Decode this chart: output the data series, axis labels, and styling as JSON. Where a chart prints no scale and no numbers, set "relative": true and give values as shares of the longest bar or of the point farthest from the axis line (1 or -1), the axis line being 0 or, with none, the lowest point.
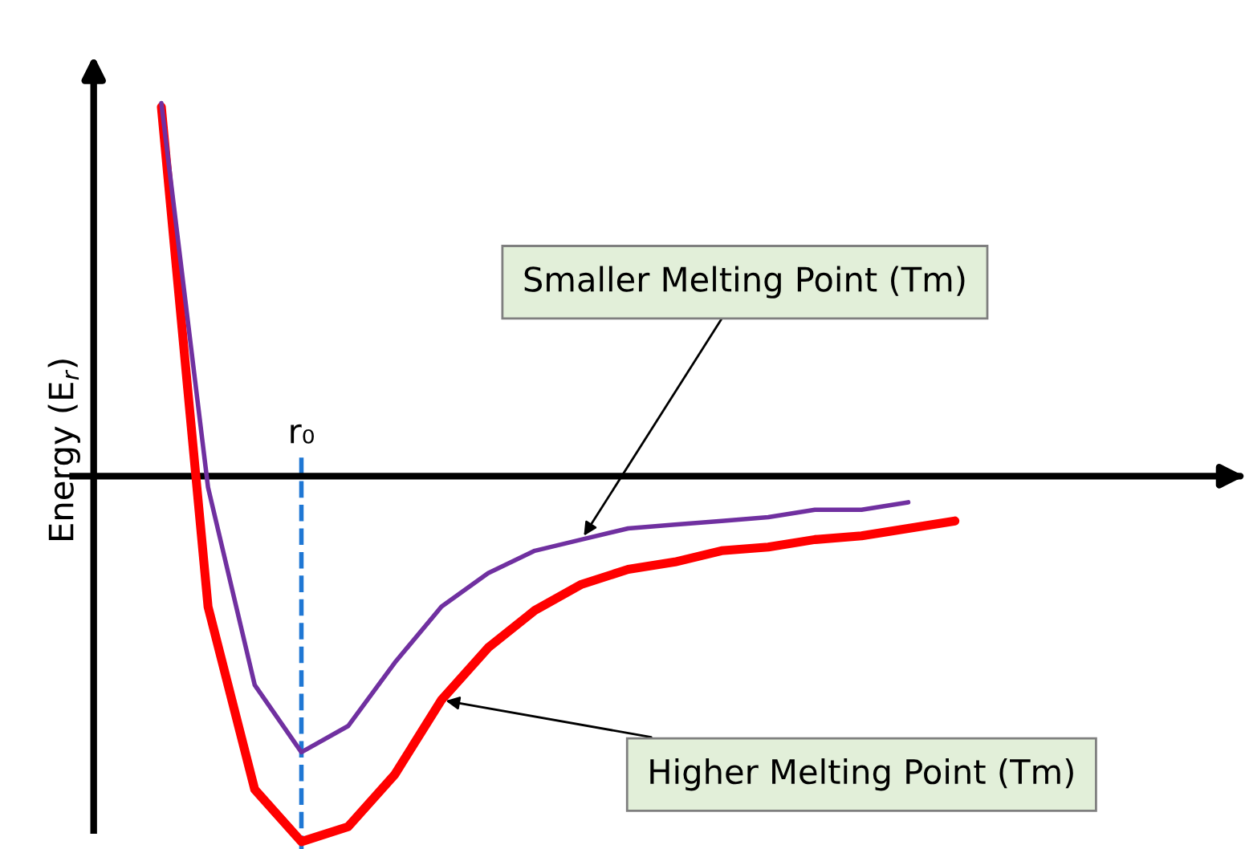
{
  "chart_data": {
    "type": "line",
    "relative": true,
    "ylabel": "Energy (E$_{r}$)",
    "categories": [
      null,
      null,
      null,
      null,
      null,
      null,
      null,
      null,
      null,
      null,
      null,
      null,
      null,
      null,
      null,
      null,
      null,
      null
    ],
    "series": [
      {
        "color": "#7030a0",
        "values": [
          1.0,
          -0.03,
          -0.56,
          -0.74,
          -0.67,
          -0.5,
          -0.35,
          -0.26,
          -0.2,
          -0.17,
          -0.14,
          -0.13,
          -0.12,
          -0.11,
          -0.09,
          -0.09,
          -0.07,
          null
        ]
      },
      {
        "color": "#ff0000",
        "values": [
          0.99,
          -0.35,
          -0.84,
          -0.98,
          -0.94,
          -0.8,
          -0.6,
          -0.46,
          -0.36,
          -0.29,
          -0.25,
          -0.23,
          -0.2,
          -0.19,
          -0.17,
          -0.16,
          -0.14,
          -0.12
        ]
      }
    ],
    "ref_lines": [
      {
        "axis": "x",
        "label": "r₀",
        "color": "#1f77d4",
        "line_style": "dashed"
      }
    ],
    "annotations": [
      "Smaller Melting Point (Tm)",
      "Higher Melting Point (Tm)"
    ],
    "legend": false
  }
}
